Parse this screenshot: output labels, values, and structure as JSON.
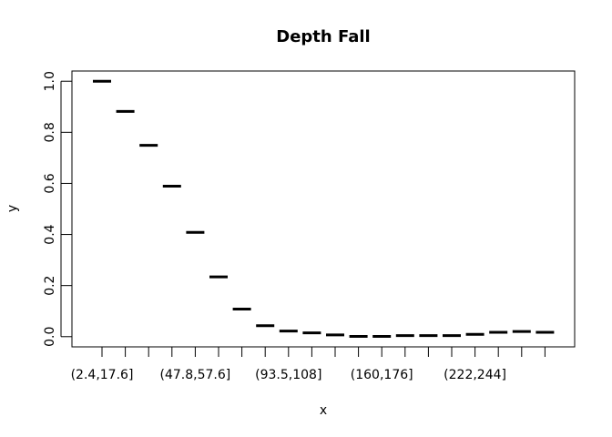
{
  "chart_data": {
    "type": "scatter",
    "title": "Depth Fall",
    "xlabel": "x",
    "ylabel": "y",
    "ylim": [
      -0.04,
      1.04
    ],
    "y_ticks": [
      "0.0",
      "0.2",
      "0.4",
      "0.6",
      "0.8",
      "1.0"
    ],
    "x_tick_labels": [
      "(2.4,17.6]",
      "(47.8,57.6]",
      "(93.5,108]",
      "(160,176]",
      "(222,244]"
    ],
    "x_tick_label_categories": [
      1,
      5,
      9,
      13,
      17
    ],
    "marker": "horizontal-dash",
    "grid": false,
    "values": [
      1.0,
      0.882,
      0.749,
      0.589,
      0.408,
      0.234,
      0.108,
      0.043,
      0.022,
      0.015,
      0.007,
      0.001,
      0.001,
      0.004,
      0.004,
      0.004,
      0.009,
      0.017,
      0.02,
      0.017
    ]
  }
}
